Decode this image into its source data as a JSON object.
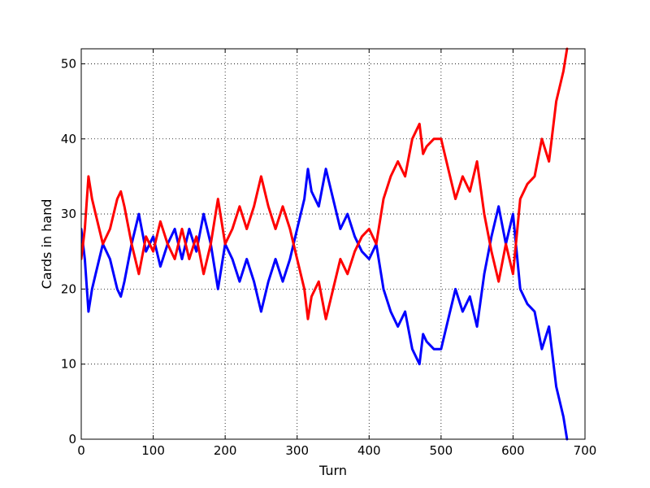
{
  "chart_data": {
    "type": "line",
    "title": "",
    "xlabel": "Turn",
    "ylabel": "Cards in hand",
    "xlim": [
      0,
      700
    ],
    "ylim": [
      0,
      52
    ],
    "xticks": [
      0,
      100,
      200,
      300,
      400,
      500,
      600,
      700
    ],
    "yticks": [
      0,
      10,
      20,
      30,
      40,
      50
    ],
    "grid": true,
    "legend": "none",
    "series": [
      {
        "color": "#0000ff",
        "x": [
          0,
          5,
          10,
          15,
          20,
          30,
          40,
          50,
          55,
          60,
          70,
          80,
          90,
          100,
          110,
          120,
          130,
          140,
          150,
          160,
          170,
          180,
          190,
          200,
          210,
          220,
          230,
          240,
          250,
          260,
          270,
          280,
          290,
          300,
          310,
          315,
          320,
          330,
          340,
          350,
          360,
          370,
          380,
          390,
          400,
          410,
          420,
          430,
          440,
          450,
          460,
          470,
          475,
          480,
          490,
          500,
          510,
          520,
          530,
          540,
          550,
          560,
          570,
          580,
          590,
          600,
          610,
          620,
          630,
          640,
          650,
          660,
          670,
          675
        ],
        "y": [
          28,
          24,
          17,
          20,
          22,
          26,
          24,
          20,
          19,
          21,
          26,
          30,
          25,
          27,
          23,
          26,
          28,
          24,
          28,
          25,
          30,
          26,
          20,
          26,
          24,
          21,
          24,
          21,
          17,
          21,
          24,
          21,
          24,
          28,
          32,
          36,
          33,
          31,
          36,
          32,
          28,
          30,
          27,
          25,
          24,
          26,
          20,
          17,
          15,
          17,
          12,
          10,
          14,
          13,
          12,
          12,
          16,
          20,
          17,
          19,
          15,
          22,
          27,
          31,
          26,
          30,
          20,
          18,
          17,
          12,
          15,
          7,
          3,
          0
        ]
      },
      {
        "color": "#ff0000",
        "x": [
          0,
          5,
          10,
          15,
          20,
          30,
          40,
          50,
          55,
          60,
          70,
          80,
          90,
          100,
          110,
          120,
          130,
          140,
          150,
          160,
          170,
          180,
          190,
          200,
          210,
          220,
          230,
          240,
          250,
          260,
          270,
          280,
          290,
          300,
          310,
          315,
          320,
          330,
          340,
          350,
          360,
          370,
          380,
          390,
          400,
          410,
          420,
          430,
          440,
          450,
          460,
          470,
          475,
          480,
          490,
          500,
          510,
          520,
          530,
          540,
          550,
          560,
          570,
          580,
          590,
          600,
          610,
          620,
          630,
          640,
          650,
          660,
          670,
          675
        ],
        "y": [
          24,
          28,
          35,
          32,
          30,
          26,
          28,
          32,
          33,
          31,
          26,
          22,
          27,
          25,
          29,
          26,
          24,
          28,
          24,
          27,
          22,
          26,
          32,
          26,
          28,
          31,
          28,
          31,
          35,
          31,
          28,
          31,
          28,
          24,
          20,
          16,
          19,
          21,
          16,
          20,
          24,
          22,
          25,
          27,
          28,
          26,
          32,
          35,
          37,
          35,
          40,
          42,
          38,
          39,
          40,
          40,
          36,
          32,
          35,
          33,
          37,
          30,
          25,
          21,
          26,
          22,
          32,
          34,
          35,
          40,
          37,
          45,
          49,
          52
        ]
      }
    ]
  }
}
